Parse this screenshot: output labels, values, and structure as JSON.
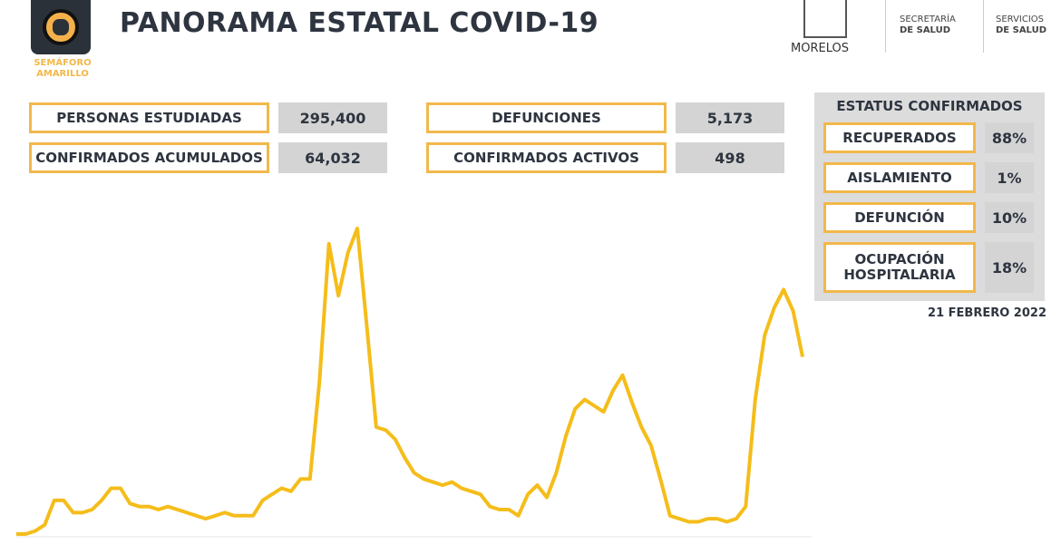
{
  "header": {
    "title": "PANORAMA ESTATAL COVID-19",
    "semaforo": "SEMÁFORO AMARILLO",
    "morelos": "MORELOS",
    "secretaria_1": "SECRETARÍA",
    "secretaria_2": "DE SALUD",
    "servicios_1": "SERVICIOS",
    "servicios_2": "DE SALUD"
  },
  "stats": [
    {
      "label": "PERSONAS ESTUDIADAS",
      "value": "295,400"
    },
    {
      "label": "CONFIRMADOS ACUMULADOS",
      "value": "64,032"
    },
    {
      "label": "DEFUNCIONES",
      "value": "5,173"
    },
    {
      "label": "CONFIRMADOS ACTIVOS",
      "value": "498"
    }
  ],
  "status": {
    "title": "ESTATUS CONFIRMADOS",
    "items": [
      {
        "label": "RECUPERADOS",
        "value": "88%"
      },
      {
        "label": "AISLAMIENTO",
        "value": "1%"
      },
      {
        "label": "DEFUNCIÓN",
        "value": "10%"
      },
      {
        "label": "OCUPACIÓN HOSPITALARIA",
        "value": "18%"
      }
    ],
    "date": "21 FEBRERO 2022"
  },
  "colors": {
    "accent": "#f2b84b",
    "line": "#f5bd1a",
    "text": "#2e3540",
    "box": "#d4d4d4"
  },
  "chart_data": {
    "type": "line",
    "title": "",
    "xlabel": "",
    "ylabel": "",
    "grid": false,
    "legend": "none",
    "y_scale": "relative (no axis printed; peak = 100)",
    "values": [
      0,
      0,
      1,
      3,
      11,
      11,
      7,
      7,
      8,
      11,
      15,
      15,
      10,
      9,
      9,
      8,
      9,
      8,
      7,
      6,
      5,
      6,
      7,
      6,
      6,
      6,
      11,
      13,
      15,
      14,
      18,
      18,
      50,
      95,
      78,
      92,
      100,
      68,
      35,
      34,
      31,
      25,
      20,
      18,
      17,
      16,
      17,
      15,
      14,
      13,
      9,
      8,
      8,
      6,
      13,
      16,
      12,
      20,
      32,
      41,
      44,
      42,
      40,
      47,
      52,
      43,
      35,
      29,
      18,
      6,
      5,
      4,
      4,
      5,
      5,
      4,
      5,
      9,
      44,
      65,
      74,
      80,
      73,
      58
    ]
  }
}
